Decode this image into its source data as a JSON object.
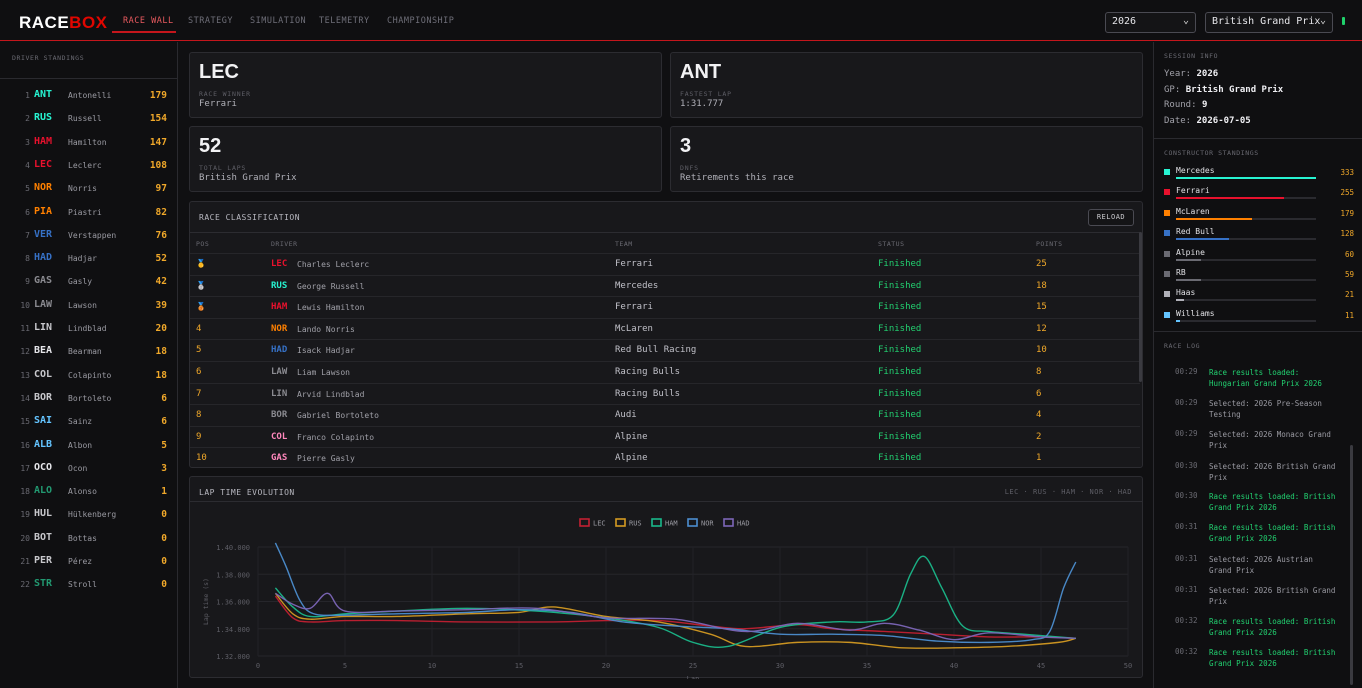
{
  "header": {
    "logo_a": "RACE",
    "logo_b": "BOX",
    "tabs": [
      "RACE WALL",
      "STRATEGY",
      "SIMULATION",
      "TELEMETRY",
      "CHAMPIONSHIP"
    ],
    "year": "2026",
    "gp": "British Grand Prix"
  },
  "colors": {
    "accent": "#c4161c",
    "gold": "#f0a82a",
    "green": "#22d070"
  },
  "driver_standings": {
    "title": "DRIVER STANDINGS",
    "rows": [
      {
        "pos": "1",
        "code": "ANT",
        "name": "Antonelli",
        "pts": "179",
        "color": "#27f4d2"
      },
      {
        "pos": "2",
        "code": "RUS",
        "name": "Russell",
        "pts": "154",
        "color": "#27f4d2"
      },
      {
        "pos": "3",
        "code": "HAM",
        "name": "Hamilton",
        "pts": "147",
        "color": "#e8112d"
      },
      {
        "pos": "4",
        "code": "LEC",
        "name": "Leclerc",
        "pts": "108",
        "color": "#e8112d"
      },
      {
        "pos": "5",
        "code": "NOR",
        "name": "Norris",
        "pts": "97",
        "color": "#ff8000"
      },
      {
        "pos": "6",
        "code": "PIA",
        "name": "Piastri",
        "pts": "82",
        "color": "#ff8000"
      },
      {
        "pos": "7",
        "code": "VER",
        "name": "Verstappen",
        "pts": "76",
        "color": "#3671c6"
      },
      {
        "pos": "8",
        "code": "HAD",
        "name": "Hadjar",
        "pts": "52",
        "color": "#3671c6"
      },
      {
        "pos": "9",
        "code": "GAS",
        "name": "Gasly",
        "pts": "42",
        "color": "#8a8a90"
      },
      {
        "pos": "10",
        "code": "LAW",
        "name": "Lawson",
        "pts": "39",
        "color": "#8a8a90"
      },
      {
        "pos": "11",
        "code": "LIN",
        "name": "Lindblad",
        "pts": "20",
        "color": "#c8c8cc"
      },
      {
        "pos": "12",
        "code": "BEA",
        "name": "Bearman",
        "pts": "18",
        "color": "#e6e6ea"
      },
      {
        "pos": "13",
        "code": "COL",
        "name": "Colapinto",
        "pts": "18",
        "color": "#c8c8cc"
      },
      {
        "pos": "14",
        "code": "BOR",
        "name": "Bortoleto",
        "pts": "6",
        "color": "#c8c8cc"
      },
      {
        "pos": "15",
        "code": "SAI",
        "name": "Sainz",
        "pts": "6",
        "color": "#64c4ff"
      },
      {
        "pos": "16",
        "code": "ALB",
        "name": "Albon",
        "pts": "5",
        "color": "#64c4ff"
      },
      {
        "pos": "17",
        "code": "OCO",
        "name": "Ocon",
        "pts": "3",
        "color": "#e6e6ea"
      },
      {
        "pos": "18",
        "code": "ALO",
        "name": "Alonso",
        "pts": "1",
        "color": "#229971"
      },
      {
        "pos": "19",
        "code": "HUL",
        "name": "Hülkenberg",
        "pts": "0",
        "color": "#c8c8cc"
      },
      {
        "pos": "20",
        "code": "BOT",
        "name": "Bottas",
        "pts": "0",
        "color": "#c8c8cc"
      },
      {
        "pos": "21",
        "code": "PER",
        "name": "Pérez",
        "pts": "0",
        "color": "#c8c8cc"
      },
      {
        "pos": "22",
        "code": "STR",
        "name": "Stroll",
        "pts": "0",
        "color": "#229971"
      }
    ]
  },
  "cards": [
    {
      "big": "LEC",
      "label": "RACE WINNER",
      "sub": "Ferrari"
    },
    {
      "big": "ANT",
      "label": "FASTEST LAP",
      "sub": "1:31.777"
    },
    {
      "big": "52",
      "label": "TOTAL LAPS",
      "sub": "British Grand Prix"
    },
    {
      "big": "3",
      "label": "DNFS",
      "sub": "Retirements this race"
    }
  ],
  "classification": {
    "title": "RACE CLASSIFICATION",
    "reload": "RELOAD",
    "headers": [
      "POS",
      "DRIVER",
      "TEAM",
      "STATUS",
      "POINTS"
    ],
    "rows": [
      {
        "pos": "🥇",
        "code": "LEC",
        "driver": "Charles Leclerc",
        "team": "Ferrari",
        "status": "Finished",
        "points": "25",
        "color": "#e8112d"
      },
      {
        "pos": "🥈",
        "code": "RUS",
        "driver": "George Russell",
        "team": "Mercedes",
        "status": "Finished",
        "points": "18",
        "color": "#27f4d2"
      },
      {
        "pos": "🥉",
        "code": "HAM",
        "driver": "Lewis Hamilton",
        "team": "Ferrari",
        "status": "Finished",
        "points": "15",
        "color": "#e8112d"
      },
      {
        "pos": "4",
        "code": "NOR",
        "driver": "Lando Norris",
        "team": "McLaren",
        "status": "Finished",
        "points": "12",
        "color": "#ff8000"
      },
      {
        "pos": "5",
        "code": "HAD",
        "driver": "Isack Hadjar",
        "team": "Red Bull Racing",
        "status": "Finished",
        "points": "10",
        "color": "#3671c6"
      },
      {
        "pos": "6",
        "code": "LAW",
        "driver": "Liam Lawson",
        "team": "Racing Bulls",
        "status": "Finished",
        "points": "8",
        "color": "#8a8a90"
      },
      {
        "pos": "7",
        "code": "LIN",
        "driver": "Arvid Lindblad",
        "team": "Racing Bulls",
        "status": "Finished",
        "points": "6",
        "color": "#8a8a90"
      },
      {
        "pos": "8",
        "code": "BOR",
        "driver": "Gabriel Bortoleto",
        "team": "Audi",
        "status": "Finished",
        "points": "4",
        "color": "#8a8a90"
      },
      {
        "pos": "9",
        "code": "COL",
        "driver": "Franco Colapinto",
        "team": "Alpine",
        "status": "Finished",
        "points": "2",
        "color": "#ff87bc"
      },
      {
        "pos": "10",
        "code": "GAS",
        "driver": "Pierre Gasly",
        "team": "Alpine",
        "status": "Finished",
        "points": "1",
        "color": "#ff87bc"
      }
    ]
  },
  "lap_chart": {
    "title": "LAP TIME EVOLUTION",
    "drivers_caption": "LEC · RUS · HAM · NOR · HAD"
  },
  "chart_data": {
    "type": "line",
    "xlabel": "Lap",
    "ylabel": "Lap time (s)",
    "xlim": [
      0,
      50
    ],
    "ylim": [
      1.32,
      1.4
    ],
    "x_ticks": [
      "0",
      "5",
      "10",
      "15",
      "20",
      "25",
      "30",
      "35",
      "40",
      "45",
      "50"
    ],
    "y_ticks": [
      "1.32.000",
      "1.34.000",
      "1.36.000",
      "1.38.000",
      "1.40.000"
    ],
    "series": [
      {
        "name": "LEC",
        "color": "#c22032",
        "x": [
          1,
          2,
          3,
          5,
          8,
          12,
          17,
          20,
          23,
          26,
          28,
          31,
          33,
          36,
          39,
          42,
          45,
          47
        ],
        "y": [
          1.364,
          1.348,
          1.345,
          1.346,
          1.346,
          1.345,
          1.345,
          1.346,
          1.346,
          1.342,
          1.34,
          1.343,
          1.34,
          1.338,
          1.336,
          1.334,
          1.334,
          1.333
        ]
      },
      {
        "name": "RUS",
        "color": "#d49a22",
        "x": [
          1,
          2,
          3,
          5,
          8,
          12,
          15,
          17,
          20,
          23,
          26,
          28,
          31,
          34,
          37,
          40,
          43,
          46,
          47
        ],
        "y": [
          1.366,
          1.351,
          1.347,
          1.349,
          1.349,
          1.351,
          1.352,
          1.356,
          1.349,
          1.345,
          1.336,
          1.327,
          1.33,
          1.33,
          1.326,
          1.326,
          1.327,
          1.33,
          1.333
        ]
      },
      {
        "name": "HAM",
        "color": "#1ab88a",
        "x": [
          1,
          2,
          3,
          5,
          8,
          12,
          16,
          20,
          23,
          25,
          27,
          30,
          33,
          35,
          36.5,
          37.5,
          38.3,
          39.3,
          40.5,
          42,
          44,
          46,
          47
        ],
        "y": [
          1.37,
          1.356,
          1.349,
          1.351,
          1.353,
          1.355,
          1.353,
          1.348,
          1.341,
          1.33,
          1.327,
          1.341,
          1.345,
          1.345,
          1.35,
          1.38,
          1.393,
          1.37,
          1.342,
          1.338,
          1.336,
          1.334,
          1.333
        ]
      },
      {
        "name": "NOR",
        "color": "#4c8ed0",
        "x": [
          1,
          1.6,
          2.4,
          3.2,
          5,
          8,
          12,
          15,
          18,
          21,
          24,
          27,
          30,
          33,
          36,
          39,
          42,
          44.5,
          45.5,
          46.3,
          47
        ],
        "y": [
          1.403,
          1.386,
          1.361,
          1.351,
          1.35,
          1.351,
          1.352,
          1.354,
          1.352,
          1.345,
          1.342,
          1.34,
          1.336,
          1.336,
          1.335,
          1.331,
          1.33,
          1.332,
          1.338,
          1.37,
          1.389
        ]
      },
      {
        "name": "HAD",
        "color": "#7c66b8",
        "x": [
          1,
          2,
          3,
          4,
          5,
          8,
          12,
          16,
          20,
          24,
          28,
          31,
          34,
          36,
          38,
          40,
          42,
          45,
          47
        ],
        "y": [
          1.366,
          1.358,
          1.355,
          1.366,
          1.353,
          1.353,
          1.354,
          1.355,
          1.348,
          1.347,
          1.338,
          1.344,
          1.339,
          1.344,
          1.339,
          1.332,
          1.337,
          1.334,
          1.333
        ]
      }
    ]
  },
  "session": {
    "title": "SESSION INFO",
    "year_label": "Year:",
    "year": "2026",
    "gp_label": "GP:",
    "gp": "British Grand Prix",
    "round_label": "Round:",
    "round": "9",
    "date_label": "Date:",
    "date": "2026-07-05"
  },
  "constructors": {
    "title": "CONSTRUCTOR STANDINGS",
    "rows": [
      {
        "name": "Mercedes",
        "pts": "333",
        "fraction": 1.0,
        "color": "#27f4d2"
      },
      {
        "name": "Ferrari",
        "pts": "255",
        "fraction": 0.77,
        "color": "#e8112d"
      },
      {
        "name": "McLaren",
        "pts": "179",
        "fraction": 0.54,
        "color": "#ff8000"
      },
      {
        "name": "Red Bull",
        "pts": "128",
        "fraction": 0.38,
        "color": "#3671c6"
      },
      {
        "name": "Alpine",
        "pts": "60",
        "fraction": 0.18,
        "color": "#6a6a72"
      },
      {
        "name": "RB",
        "pts": "59",
        "fraction": 0.18,
        "color": "#6a6a72"
      },
      {
        "name": "Haas",
        "pts": "21",
        "fraction": 0.06,
        "color": "#b0b0b8"
      },
      {
        "name": "Williams",
        "pts": "11",
        "fraction": 0.03,
        "color": "#64c4ff"
      }
    ]
  },
  "race_log": {
    "title": "RACE LOG",
    "entries": [
      {
        "time": "00:29",
        "msg": "Race results loaded: Hungarian Grand Prix 2026",
        "ok": true
      },
      {
        "time": "00:29",
        "msg": "Selected: 2026 Pre-Season Testing",
        "ok": false
      },
      {
        "time": "00:29",
        "msg": "Selected: 2026 Monaco Grand Prix",
        "ok": false
      },
      {
        "time": "00:30",
        "msg": "Selected: 2026 British Grand Prix",
        "ok": false
      },
      {
        "time": "00:30",
        "msg": "Race results loaded: British Grand Prix 2026",
        "ok": true
      },
      {
        "time": "00:31",
        "msg": "Race results loaded: British Grand Prix 2026",
        "ok": true
      },
      {
        "time": "00:31",
        "msg": "Selected: 2026 Austrian Grand Prix",
        "ok": false
      },
      {
        "time": "00:31",
        "msg": "Selected: 2026 British Grand Prix",
        "ok": false
      },
      {
        "time": "00:32",
        "msg": "Race results loaded: British Grand Prix 2026",
        "ok": true
      },
      {
        "time": "00:32",
        "msg": "Race results loaded: British Grand Prix 2026",
        "ok": true
      }
    ]
  }
}
